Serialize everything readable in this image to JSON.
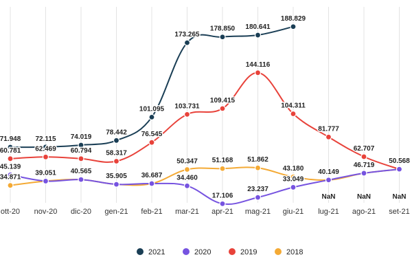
{
  "chart_data": {
    "type": "line",
    "categories": [
      "ott-20",
      "nov-20",
      "dic-20",
      "gen-21",
      "feb-21",
      "mar-21",
      "apr-21",
      "mag-21",
      "giu-21",
      "lug-21",
      "ago-21",
      "set-21"
    ],
    "ylim": [
      0,
      200
    ],
    "grid": true,
    "legend_position": "bottom",
    "series": [
      {
        "name": "2021",
        "color": "#1a3e55",
        "values": [
          71.948,
          72.115,
          74.019,
          78.442,
          101.095,
          173.265,
          178.85,
          180.641,
          188.829,
          null,
          null,
          null
        ],
        "labels": [
          "71.948",
          "72.115",
          "74.019",
          "78.442",
          "101.095",
          "173.265",
          "178.850",
          "180.641",
          "188.829",
          "NaN",
          "NaN",
          "NaN"
        ]
      },
      {
        "name": "2020",
        "color": "#7653e0",
        "values": [
          45.139,
          39.051,
          40.565,
          35.905,
          36.687,
          34.46,
          17.106,
          23.237,
          33.049,
          40.149,
          46.719,
          50.568
        ],
        "labels": [
          "45.139",
          "39.051",
          "40.565",
          "35.905",
          "36.687",
          "34.460",
          "17.106",
          "23.237",
          "33.049",
          "40.149",
          "46.719",
          "50.568"
        ]
      },
      {
        "name": "2019",
        "color": "#e8423a",
        "values": [
          60.781,
          62.469,
          60.794,
          58.317,
          76.545,
          103.731,
          109.415,
          144.116,
          104.311,
          81.777,
          62.707,
          50.568
        ],
        "labels": [
          "60.781",
          "62.469",
          "60.794",
          "58.317",
          "76.545",
          "103.731",
          "109.415",
          "144.116",
          "104.311",
          "81.777",
          "62.707",
          ""
        ]
      },
      {
        "name": "2018",
        "color": "#f4aa35",
        "values": [
          34.871,
          39.051,
          40.565,
          35.905,
          36.687,
          50.347,
          51.168,
          51.862,
          43.18,
          40.149,
          46.719,
          50.568
        ],
        "labels": [
          "34.871",
          "",
          "",
          "",
          "",
          "50.347",
          "51.168",
          "51.862",
          "43.180",
          "",
          "",
          ""
        ]
      }
    ]
  }
}
